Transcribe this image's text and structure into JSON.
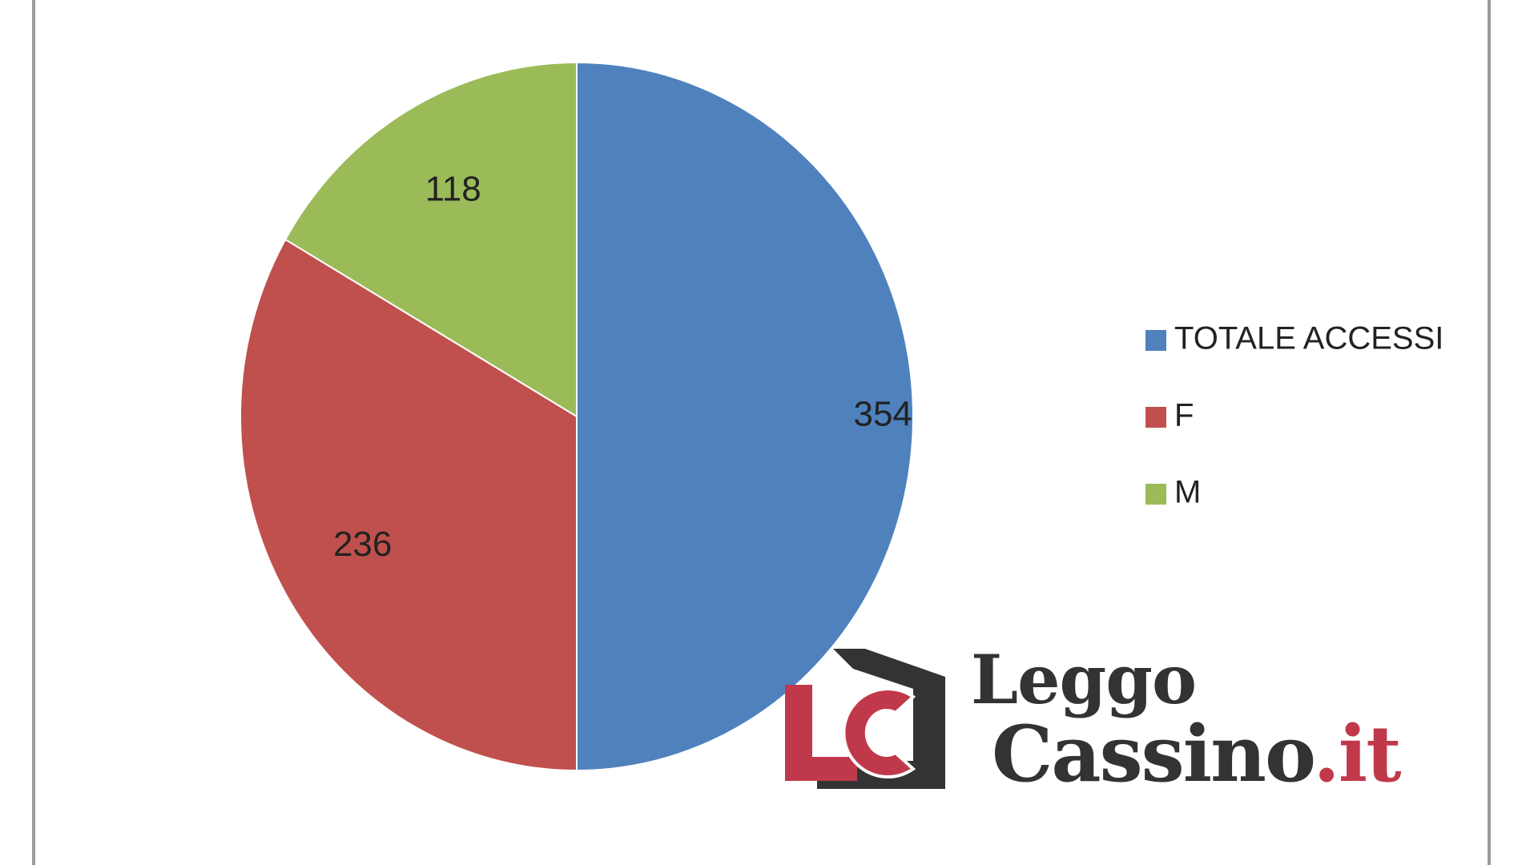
{
  "chart_data": {
    "type": "pie",
    "categories": [
      "TOTALE ACCESSI",
      "F",
      "M"
    ],
    "values": [
      354,
      236,
      118
    ],
    "colors": [
      "#4f81bd",
      "#c0504d",
      "#9bbb59"
    ],
    "legend_position": "right",
    "data_labels": [
      "354",
      "236",
      "118"
    ]
  },
  "watermark": {
    "monogram": "LC",
    "line1": "Leggo",
    "line2": "Cassino",
    "suffix": ".it",
    "brand_color": "#c0394b",
    "dark_color": "#333333"
  }
}
